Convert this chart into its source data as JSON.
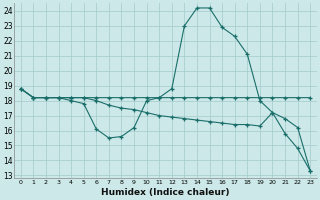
{
  "xlabel": "Humidex (Indice chaleur)",
  "background_color": "#cce8e8",
  "grid_color": "#aacece",
  "line_color": "#1a6e6a",
  "xlim": [
    -0.5,
    23.5
  ],
  "ylim": [
    12.8,
    24.5
  ],
  "xticks": [
    0,
    1,
    2,
    3,
    4,
    5,
    6,
    7,
    8,
    9,
    10,
    11,
    12,
    13,
    14,
    15,
    16,
    17,
    18,
    19,
    20,
    21,
    22,
    23
  ],
  "yticks": [
    13,
    14,
    15,
    16,
    17,
    18,
    19,
    20,
    21,
    22,
    23,
    24
  ],
  "hours": [
    0,
    1,
    2,
    3,
    4,
    5,
    6,
    7,
    8,
    9,
    10,
    11,
    12,
    13,
    14,
    15,
    16,
    17,
    18,
    19,
    20,
    21,
    22,
    23
  ],
  "line1": [
    18.8,
    18.2,
    18.2,
    18.2,
    18.0,
    17.8,
    16.1,
    15.5,
    15.6,
    16.2,
    18.0,
    18.2,
    18.8,
    23.0,
    24.2,
    24.2,
    22.9,
    22.3,
    21.1,
    18.0,
    17.2,
    15.8,
    14.8,
    13.3
  ],
  "line2": [
    18.8,
    18.2,
    18.2,
    18.2,
    18.2,
    18.2,
    18.2,
    18.2,
    18.2,
    18.2,
    18.2,
    18.2,
    18.2,
    18.2,
    18.2,
    18.2,
    18.2,
    18.2,
    18.2,
    18.2,
    18.2,
    18.2,
    18.2,
    18.2
  ],
  "line3": [
    18.8,
    18.2,
    18.2,
    18.2,
    18.2,
    18.2,
    18.0,
    17.7,
    17.5,
    17.4,
    17.2,
    17.0,
    16.9,
    16.8,
    16.7,
    16.6,
    16.5,
    16.4,
    16.4,
    16.3,
    17.2,
    16.8,
    16.2,
    13.3
  ]
}
